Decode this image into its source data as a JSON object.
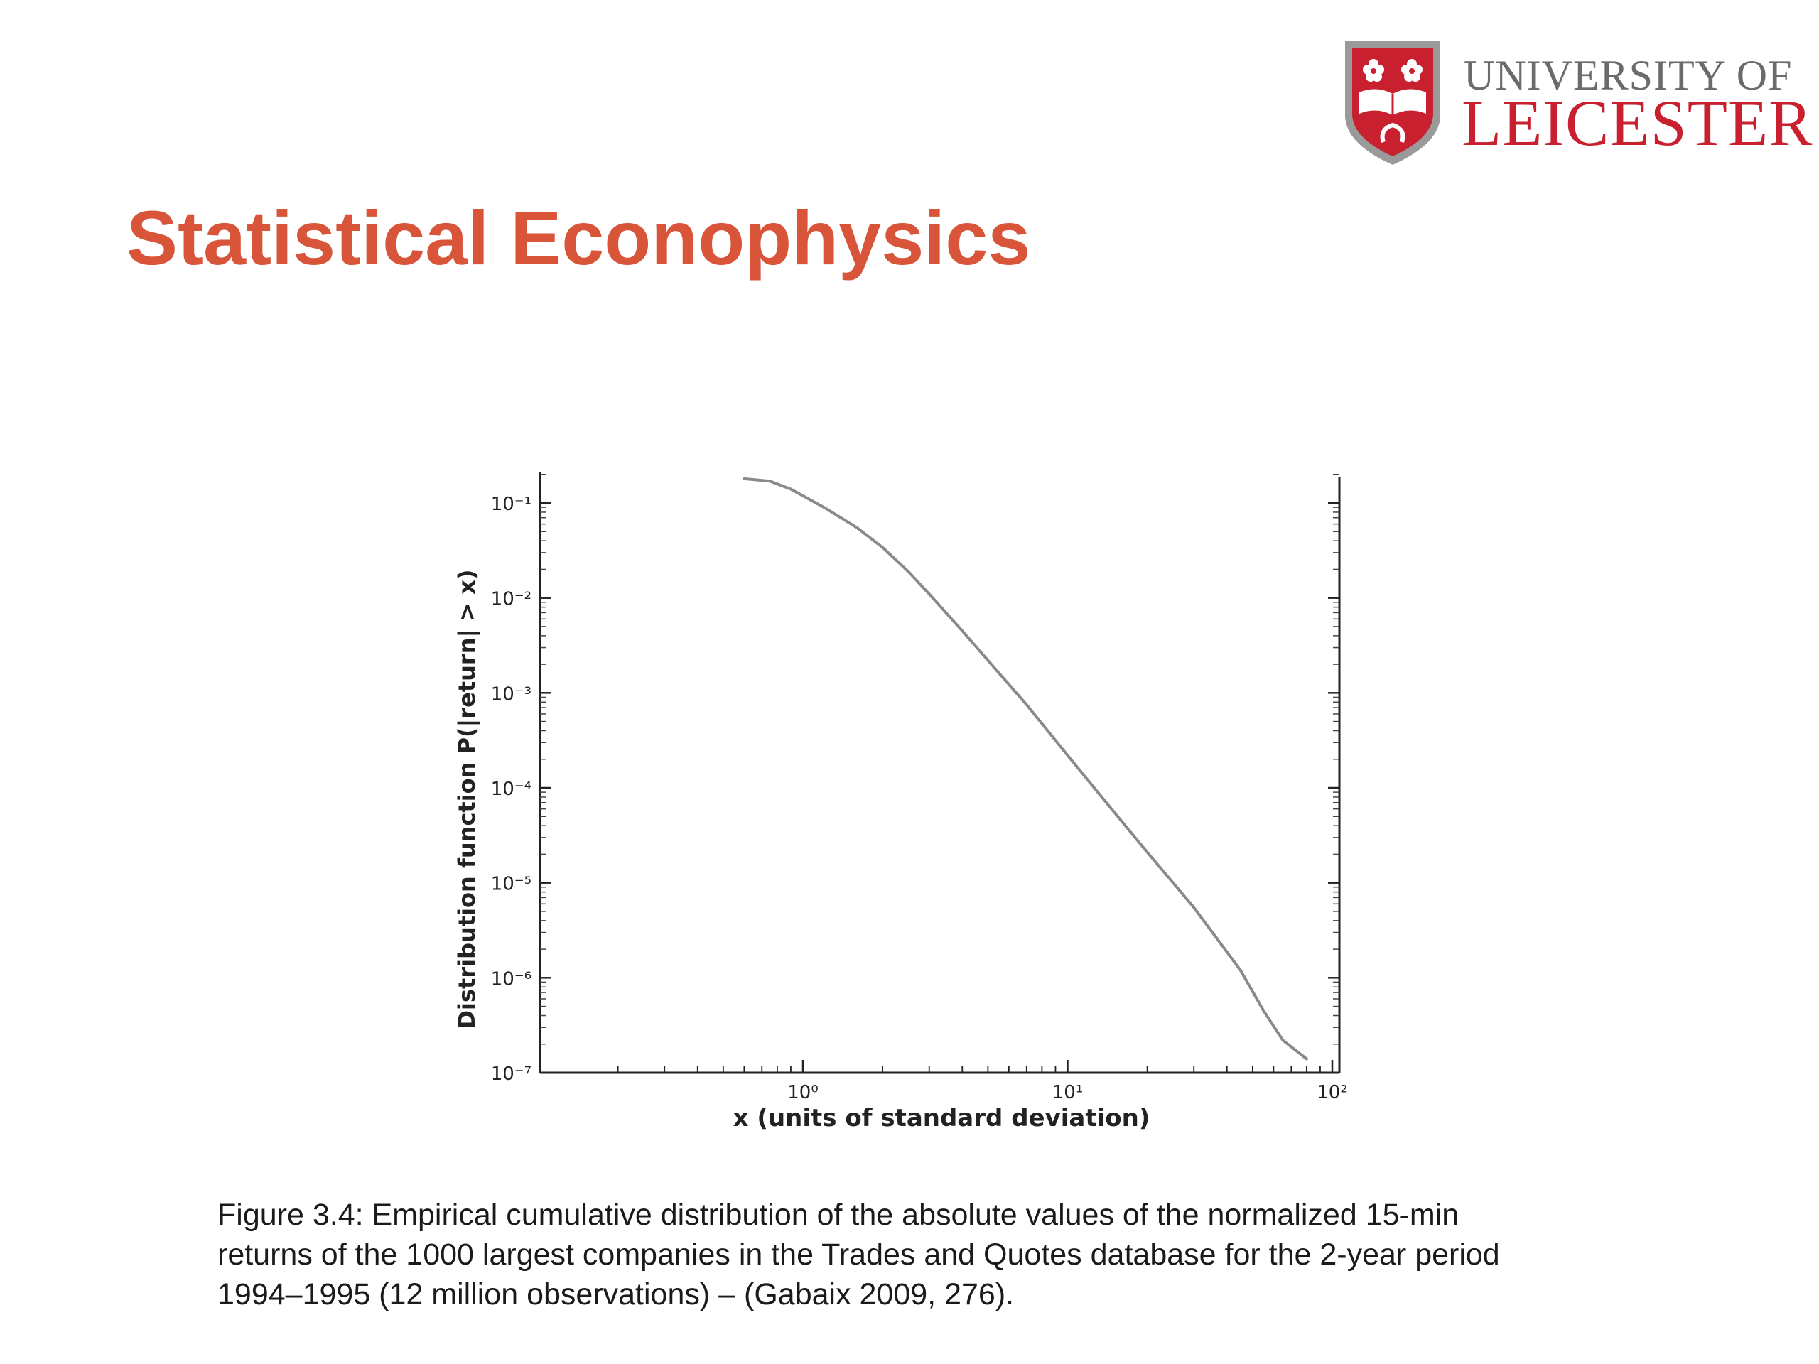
{
  "logo": {
    "line1": "UNIVERSITY OF",
    "line2": "LEICESTER",
    "shield_icon": "university-shield-icon",
    "colors": {
      "red": "#c8202f",
      "grey": "#6b6b6b"
    }
  },
  "slide": {
    "title": "Statistical Econophysics",
    "title_color": "#d8553a"
  },
  "chart_data": {
    "type": "line",
    "xlabel": "x (units of standard deviation)",
    "ylabel": "Distribution function P(|return| > x)",
    "xscale": "log",
    "yscale": "log",
    "xlim": [
      0.1,
      100
    ],
    "ylim": [
      1e-07,
      0.25
    ],
    "x_ticks": [
      "10⁰",
      "10¹",
      "10²"
    ],
    "y_ticks": [
      "10⁻¹",
      "10⁻²",
      "10⁻³",
      "10⁻⁴",
      "10⁻⁵",
      "10⁻⁶",
      "10⁻⁷"
    ],
    "grid": false,
    "series": [
      {
        "color": "#8a8a8a",
        "x": [
          0.6,
          0.75,
          0.9,
          1.2,
          1.6,
          2.0,
          2.5,
          3.0,
          4.0,
          5.0,
          7.0,
          10.0,
          14.0,
          20.0,
          30.0,
          45.0,
          55.0,
          65.0,
          80.0
        ],
        "y": [
          0.18,
          0.17,
          0.14,
          0.09,
          0.055,
          0.034,
          0.019,
          0.011,
          0.0045,
          0.0022,
          0.00075,
          0.00022,
          7e-05,
          2.1e-05,
          5.5e-06,
          1.2e-06,
          4.5e-07,
          2.2e-07,
          1.4e-07
        ]
      }
    ]
  },
  "caption": {
    "lines": [
      "Figure 3.4: Empirical cumulative distribution of the absolute values of the normalized 15-min",
      "returns of the 1000 largest companies in the Trades and Quotes database for the 2-year period",
      "1994–1995 (12 million observations) – (Gabaix 2009, 276)."
    ]
  }
}
